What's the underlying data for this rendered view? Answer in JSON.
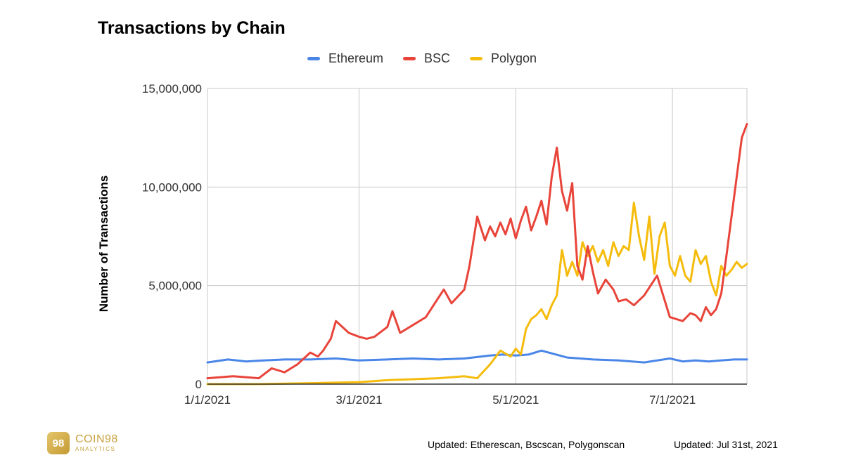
{
  "chart_data": {
    "type": "line",
    "title": "Transactions by Chain",
    "xlabel": "",
    "ylabel": "Number of Transactions",
    "ylim": [
      0,
      15000000
    ],
    "yticks": [
      0,
      5000000,
      10000000,
      15000000
    ],
    "ytick_labels": [
      "0",
      "5,000,000",
      "10,000,000",
      "15,000,000"
    ],
    "x_range": [
      0,
      210
    ],
    "xticks": [
      0,
      59,
      120,
      181
    ],
    "xtick_labels": [
      "1/1/2021",
      "3/1/2021",
      "5/1/2021",
      "7/1/2021"
    ],
    "x_unit": "days since 1/1/2021",
    "grid": true,
    "legend_position": "top",
    "series": [
      {
        "name": "Ethereum",
        "color": "#4a86e8",
        "x": [
          0,
          8,
          15,
          22,
          30,
          40,
          50,
          59,
          70,
          80,
          90,
          100,
          110,
          115,
          120,
          125,
          130,
          140,
          150,
          160,
          170,
          180,
          185,
          190,
          195,
          200,
          205,
          210
        ],
        "values": [
          1100000,
          1250000,
          1150000,
          1200000,
          1250000,
          1250000,
          1300000,
          1200000,
          1250000,
          1300000,
          1250000,
          1300000,
          1450000,
          1500000,
          1450000,
          1500000,
          1700000,
          1350000,
          1250000,
          1200000,
          1100000,
          1300000,
          1150000,
          1200000,
          1150000,
          1200000,
          1250000,
          1250000
        ]
      },
      {
        "name": "BSC",
        "color": "#e8443a",
        "x": [
          0,
          10,
          20,
          25,
          30,
          35,
          40,
          43,
          45,
          48,
          50,
          55,
          59,
          62,
          65,
          70,
          72,
          75,
          80,
          85,
          88,
          92,
          95,
          100,
          102,
          105,
          108,
          110,
          112,
          114,
          116,
          118,
          120,
          122,
          124,
          126,
          128,
          130,
          132,
          134,
          136,
          138,
          140,
          142,
          144,
          146,
          148,
          150,
          152,
          155,
          158,
          160,
          163,
          166,
          170,
          175,
          180,
          185,
          188,
          190,
          192,
          194,
          196,
          198,
          200,
          202,
          204,
          206,
          208,
          210
        ],
        "values": [
          300000,
          400000,
          300000,
          800000,
          600000,
          1000000,
          1600000,
          1400000,
          1700000,
          2300000,
          3200000,
          2600000,
          2400000,
          2300000,
          2400000,
          2900000,
          3700000,
          2600000,
          3000000,
          3400000,
          4000000,
          4800000,
          4100000,
          4800000,
          6000000,
          8500000,
          7300000,
          8000000,
          7500000,
          8200000,
          7600000,
          8400000,
          7400000,
          8300000,
          9000000,
          7800000,
          8500000,
          9300000,
          8100000,
          10500000,
          12000000,
          9800000,
          8800000,
          10200000,
          6000000,
          5300000,
          7000000,
          5700000,
          4600000,
          5300000,
          4800000,
          4200000,
          4300000,
          4000000,
          4500000,
          5500000,
          3400000,
          3200000,
          3600000,
          3500000,
          3200000,
          3900000,
          3500000,
          3800000,
          4600000,
          6500000,
          8500000,
          10500000,
          12500000,
          13200000
        ]
      },
      {
        "name": "Polygon",
        "color": "#f5bc0d",
        "x": [
          0,
          20,
          40,
          59,
          70,
          80,
          90,
          100,
          105,
          110,
          114,
          118,
          120,
          122,
          124,
          126,
          128,
          130,
          132,
          134,
          136,
          138,
          140,
          142,
          144,
          146,
          148,
          150,
          152,
          154,
          156,
          158,
          160,
          162,
          164,
          166,
          168,
          170,
          172,
          174,
          176,
          178,
          180,
          182,
          184,
          186,
          188,
          190,
          192,
          194,
          196,
          198,
          200,
          202,
          204,
          206,
          208,
          210
        ],
        "values": [
          0,
          0,
          50000,
          100000,
          200000,
          250000,
          300000,
          400000,
          300000,
          1000000,
          1700000,
          1400000,
          1800000,
          1500000,
          2800000,
          3300000,
          3500000,
          3800000,
          3300000,
          4000000,
          4500000,
          6800000,
          5500000,
          6200000,
          5500000,
          7200000,
          6500000,
          7000000,
          6200000,
          6800000,
          6000000,
          7200000,
          6500000,
          7000000,
          6800000,
          9200000,
          7500000,
          6300000,
          8500000,
          5600000,
          7500000,
          8200000,
          6000000,
          5500000,
          6500000,
          5500000,
          5200000,
          6800000,
          6100000,
          6500000,
          5200000,
          4500000,
          6000000,
          5500000,
          5800000,
          6200000,
          5900000,
          6100000
        ]
      }
    ]
  },
  "branding": {
    "logo_badge": "98",
    "logo_name": "COIN98",
    "logo_sub": "ANALYTICS"
  },
  "footer": {
    "source": "Updated: Etherescan, Bscscan, Polygonscan",
    "date": "Updated: Jul 31st, 2021"
  }
}
